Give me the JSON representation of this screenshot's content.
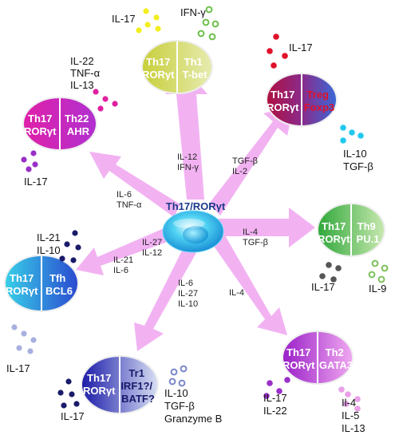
{
  "center": {
    "line1": "Th17/RORγt"
  },
  "colors": {
    "arrow": "#f0aaf0",
    "center_text": "#1a3a8a",
    "cell_text_light": "#ffffff",
    "cell_text_dark": "#ffffff"
  },
  "cells": [
    {
      "id": "th1",
      "left_lines": [
        "Th17",
        "RORγt"
      ],
      "right_lines": [
        "Th1",
        "T-bet"
      ]
    },
    {
      "id": "treg",
      "left_lines": [
        "Th17",
        "RORγt"
      ],
      "right_lines": [
        "Treg",
        "Foxp3"
      ]
    },
    {
      "id": "th9",
      "left_lines": [
        "Th17",
        "RORγt"
      ],
      "right_lines": [
        "Th9",
        "PU.1"
      ]
    },
    {
      "id": "th2",
      "left_lines": [
        "Th17",
        "RORγt"
      ],
      "right_lines": [
        "Th2",
        "GATA3"
      ]
    },
    {
      "id": "tr1",
      "left_lines": [
        "Th17",
        "RORγt"
      ],
      "right_lines": [
        "Tr1",
        "IRF1?/",
        "BATF?"
      ]
    },
    {
      "id": "tfh",
      "left_lines": [
        "Th17",
        "RORγt"
      ],
      "right_lines": [
        "Tfh",
        "BCL6"
      ]
    },
    {
      "id": "th22",
      "left_lines": [
        "Th17",
        "RORγt"
      ],
      "right_lines": [
        "Th22",
        "AHR"
      ]
    }
  ],
  "arrow_labels": {
    "th1": [
      "IL-12",
      "IFN-γ"
    ],
    "treg": [
      "TGF-β",
      "IL-2"
    ],
    "th9": [
      "IL-4",
      "TGF-β"
    ],
    "th2": [
      "IL-4"
    ],
    "tr1": [
      "IL-6",
      "IL-27",
      "IL-10"
    ],
    "tfh_a": [
      "IL-27",
      "IL-12"
    ],
    "tfh_b": [
      "IL-21",
      "IL-6"
    ],
    "th22": [
      "IL-6",
      "TNF-α"
    ]
  },
  "cytokines": {
    "th1_left": [
      "IL-17"
    ],
    "th1_right": [
      "IFN-γ"
    ],
    "treg_top": [
      "IL-17"
    ],
    "treg_bottom": [
      "IL-10",
      "TGF-β"
    ],
    "th9_left": [
      "IL-17"
    ],
    "th9_right": [
      "IL-9"
    ],
    "th2_left": [
      "IL-17",
      "IL-22"
    ],
    "th2_right": [
      "Il-4",
      "IL-5",
      "IL-13"
    ],
    "tr1_left": [
      "IL-17"
    ],
    "tr1_right": [
      "IL-10",
      "TGF-β",
      "Granzyme B"
    ],
    "tfh_top": [
      "IL-21",
      "IL-10"
    ],
    "tfh_bottom": [
      "IL-17"
    ],
    "th22_top": [
      "IL-22",
      "TNF-α",
      "IL-13"
    ],
    "th22_bottom": [
      "IL-17"
    ]
  }
}
